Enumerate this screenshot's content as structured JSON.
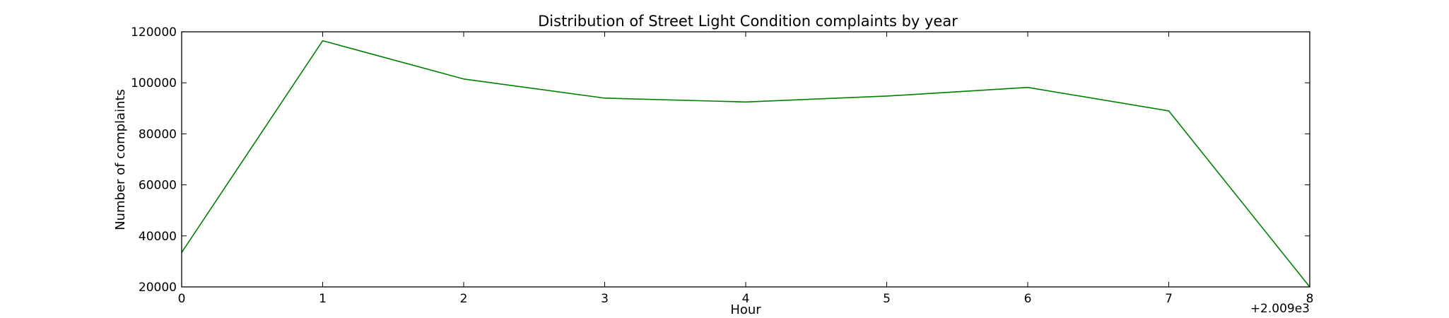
{
  "chart_data": {
    "type": "line",
    "title": "Distribution of  Street Light Condition complaints by year",
    "xlabel": "Hour",
    "ylabel": "Number of complaints",
    "x_offset_label": "+2.009e3",
    "x": [
      0,
      1,
      2,
      3,
      4,
      5,
      6,
      7,
      8
    ],
    "x_ticks": [
      "0",
      "1",
      "2",
      "3",
      "4",
      "5",
      "6",
      "7",
      "8"
    ],
    "y_ticks": [
      "20000",
      "40000",
      "60000",
      "80000",
      "100000",
      "120000"
    ],
    "xlim": [
      0,
      8
    ],
    "ylim": [
      20000,
      120000
    ],
    "grid": false,
    "series": [
      {
        "values": [
          33500,
          116500,
          101500,
          94000,
          92500,
          94800,
          98200,
          89000,
          20000
        ],
        "color": "#008000"
      }
    ]
  }
}
